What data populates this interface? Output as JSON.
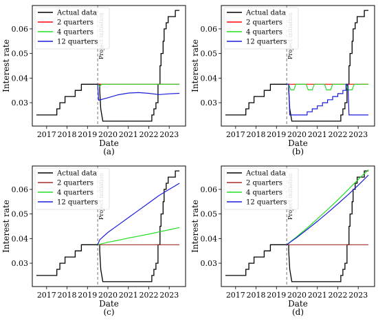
{
  "chart_data": [
    {
      "panel_label": "(a)",
      "type": "line",
      "xlabel": "Date",
      "ylabel": "Interest rate",
      "xlim": [
        2016.3,
        2023.8
      ],
      "ylim": [
        0.0205,
        0.0695
      ],
      "x_ticks": [
        "2017",
        "2018",
        "2019",
        "2020",
        "2021",
        "2022",
        "2023"
      ],
      "y_ticks": [
        "0.03",
        "0.04",
        "0.05",
        "0.06"
      ],
      "annotation": "Project initiation",
      "vline_x": 2019.5,
      "legend": {
        "position": "top-left"
      },
      "series": [
        {
          "name": "Actual data",
          "color": "#000000",
          "kind": "actual"
        },
        {
          "name": "2 quarters",
          "color": "#ff0000",
          "points": [
            [
              2019.5,
              0.0375
            ],
            [
              2023.5,
              0.0375
            ]
          ]
        },
        {
          "name": "4 quarters",
          "color": "#22dd22",
          "points": [
            [
              2019.5,
              0.0375
            ],
            [
              2019.6,
              0.0367
            ],
            [
              2019.7,
              0.0375
            ],
            [
              2023.5,
              0.0375
            ]
          ]
        },
        {
          "name": "12 quarters",
          "color": "#1a1adc",
          "points": [
            [
              2019.5,
              0.0375
            ],
            [
              2019.55,
              0.031
            ],
            [
              2020.0,
              0.032
            ],
            [
              2020.5,
              0.0332
            ],
            [
              2021.0,
              0.0339
            ],
            [
              2021.5,
              0.0341
            ],
            [
              2022.0,
              0.0338
            ],
            [
              2022.5,
              0.0333
            ],
            [
              2023.0,
              0.0336
            ],
            [
              2023.5,
              0.0338
            ]
          ]
        }
      ]
    },
    {
      "panel_label": "(b)",
      "type": "line",
      "xlabel": "Date",
      "ylabel": "Interest rate",
      "xlim": [
        2016.3,
        2023.8
      ],
      "ylim": [
        0.0205,
        0.0695
      ],
      "x_ticks": [
        "2017",
        "2018",
        "2019",
        "2020",
        "2021",
        "2022",
        "2023"
      ],
      "y_ticks": [
        "0.03",
        "0.04",
        "0.05",
        "0.06"
      ],
      "annotation": "Project initiation",
      "vline_x": 2019.5,
      "legend": {
        "position": "top-left"
      },
      "series": [
        {
          "name": "Actual data",
          "color": "#000000",
          "kind": "actual"
        },
        {
          "name": "2 quarters",
          "color": "#ff0000",
          "points": [
            [
              2019.5,
              0.0375
            ],
            [
              2023.5,
              0.0375
            ]
          ]
        },
        {
          "name": "4 quarters",
          "color": "#22dd22",
          "points": [
            [
              2019.5,
              0.0375
            ],
            [
              2019.6,
              0.0375
            ],
            [
              2019.7,
              0.0352
            ],
            [
              2019.85,
              0.0352
            ],
            [
              2019.95,
              0.0375
            ],
            [
              2020.45,
              0.0375
            ],
            [
              2020.55,
              0.0352
            ],
            [
              2020.75,
              0.0352
            ],
            [
              2020.85,
              0.0375
            ],
            [
              2021.35,
              0.0375
            ],
            [
              2021.45,
              0.0352
            ],
            [
              2021.65,
              0.0352
            ],
            [
              2021.75,
              0.0375
            ],
            [
              2022.4,
              0.0375
            ],
            [
              2022.5,
              0.0352
            ],
            [
              2022.7,
              0.0352
            ],
            [
              2022.8,
              0.0375
            ],
            [
              2023.5,
              0.0375
            ]
          ]
        },
        {
          "name": "12 quarters",
          "color": "#1a1adc",
          "points": [
            [
              2019.5,
              0.0375
            ],
            [
              2019.6,
              0.0375
            ],
            [
              2019.65,
              0.025
            ],
            [
              2020.5,
              0.025
            ],
            [
              2020.5,
              0.0263
            ],
            [
              2020.75,
              0.0263
            ],
            [
              2020.75,
              0.0275
            ],
            [
              2021.0,
              0.0275
            ],
            [
              2021.0,
              0.0287
            ],
            [
              2021.25,
              0.0287
            ],
            [
              2021.25,
              0.03
            ],
            [
              2021.5,
              0.03
            ],
            [
              2021.5,
              0.0312
            ],
            [
              2021.75,
              0.0312
            ],
            [
              2021.75,
              0.0325
            ],
            [
              2022.0,
              0.0325
            ],
            [
              2022.0,
              0.0337
            ],
            [
              2022.25,
              0.0337
            ],
            [
              2022.25,
              0.035
            ],
            [
              2022.4,
              0.035
            ],
            [
              2022.4,
              0.0375
            ],
            [
              2022.5,
              0.0375
            ],
            [
              2022.55,
              0.025
            ],
            [
              2023.5,
              0.025
            ]
          ]
        }
      ]
    },
    {
      "panel_label": "(c)",
      "type": "line",
      "xlabel": "Date",
      "ylabel": "Interest rate",
      "xlim": [
        2016.3,
        2023.8
      ],
      "ylim": [
        0.0205,
        0.0695
      ],
      "x_ticks": [
        "2017",
        "2018",
        "2019",
        "2020",
        "2021",
        "2022",
        "2023"
      ],
      "y_ticks": [
        "0.03",
        "0.04",
        "0.05",
        "0.06"
      ],
      "annotation": "Project initiation",
      "vline_x": 2019.5,
      "legend": {
        "position": "top-left"
      },
      "series": [
        {
          "name": "Actual data",
          "color": "#000000",
          "kind": "actual"
        },
        {
          "name": "2 quarters",
          "color": "#a52a2a",
          "points": [
            [
              2019.5,
              0.0375
            ],
            [
              2023.5,
              0.0375
            ]
          ]
        },
        {
          "name": "4 quarters",
          "color": "#22dd22",
          "points": [
            [
              2019.5,
              0.0375
            ],
            [
              2020.0,
              0.0385
            ],
            [
              2020.5,
              0.0393
            ],
            [
              2021.0,
              0.0402
            ],
            [
              2021.5,
              0.041
            ],
            [
              2022.0,
              0.0418
            ],
            [
              2022.5,
              0.0427
            ],
            [
              2023.0,
              0.0436
            ],
            [
              2023.5,
              0.0445
            ]
          ]
        },
        {
          "name": "12 quarters",
          "color": "#1a1adc",
          "points": [
            [
              2019.5,
              0.0375
            ],
            [
              2019.6,
              0.0395
            ],
            [
              2020.0,
              0.0425
            ],
            [
              2020.5,
              0.0455
            ],
            [
              2021.0,
              0.0485
            ],
            [
              2021.5,
              0.0515
            ],
            [
              2022.0,
              0.0545
            ],
            [
              2022.5,
              0.0575
            ],
            [
              2023.0,
              0.06
            ],
            [
              2023.5,
              0.0625
            ]
          ]
        }
      ]
    },
    {
      "panel_label": "(d)",
      "type": "line",
      "xlabel": "Date",
      "ylabel": "Interest rate",
      "xlim": [
        2016.3,
        2023.8
      ],
      "ylim": [
        0.0205,
        0.0695
      ],
      "x_ticks": [
        "2017",
        "2018",
        "2019",
        "2020",
        "2021",
        "2022",
        "2023"
      ],
      "y_ticks": [
        "0.03",
        "0.04",
        "0.05",
        "0.06"
      ],
      "annotation": "Project initiation",
      "vline_x": 2019.5,
      "legend": {
        "position": "top-left"
      },
      "series": [
        {
          "name": "Actual data",
          "color": "#000000",
          "kind": "actual"
        },
        {
          "name": "2 quarters",
          "color": "#a52a2a",
          "points": [
            [
              2019.5,
              0.0375
            ],
            [
              2023.5,
              0.0375
            ]
          ]
        },
        {
          "name": "4 quarters",
          "color": "#22dd22",
          "points": [
            [
              2019.5,
              0.0375
            ],
            [
              2020.0,
              0.0408
            ],
            [
              2020.5,
              0.0443
            ],
            [
              2021.0,
              0.048
            ],
            [
              2021.5,
              0.0518
            ],
            [
              2022.0,
              0.0557
            ],
            [
              2022.5,
              0.0598
            ],
            [
              2023.0,
              0.064
            ],
            [
              2023.5,
              0.068
            ]
          ]
        },
        {
          "name": "12 quarters",
          "color": "#1a1adc",
          "points": [
            [
              2019.5,
              0.0375
            ],
            [
              2020.0,
              0.0405
            ],
            [
              2020.5,
              0.0437
            ],
            [
              2021.0,
              0.047
            ],
            [
              2021.5,
              0.0505
            ],
            [
              2022.0,
              0.0541
            ],
            [
              2022.5,
              0.0578
            ],
            [
              2023.0,
              0.0617
            ],
            [
              2023.5,
              0.0658
            ]
          ]
        }
      ]
    }
  ],
  "actual_data": [
    [
      2016.5,
      0.025
    ],
    [
      2017.5,
      0.025
    ],
    [
      2017.5,
      0.0275
    ],
    [
      2017.65,
      0.0275
    ],
    [
      2017.65,
      0.03
    ],
    [
      2017.9,
      0.03
    ],
    [
      2017.9,
      0.0325
    ],
    [
      2018.4,
      0.0325
    ],
    [
      2018.4,
      0.035
    ],
    [
      2018.7,
      0.035
    ],
    [
      2018.7,
      0.0375
    ],
    [
      2019.6,
      0.0375
    ],
    [
      2019.6,
      0.035
    ],
    [
      2019.65,
      0.0275
    ],
    [
      2019.75,
      0.0225
    ],
    [
      2022.0,
      0.0225
    ],
    [
      2022.15,
      0.0225
    ],
    [
      2022.15,
      0.025
    ],
    [
      2022.25,
      0.025
    ],
    [
      2022.25,
      0.0275
    ],
    [
      2022.35,
      0.0275
    ],
    [
      2022.35,
      0.03
    ],
    [
      2022.45,
      0.03
    ],
    [
      2022.45,
      0.0375
    ],
    [
      2022.55,
      0.0375
    ],
    [
      2022.55,
      0.045
    ],
    [
      2022.6,
      0.045
    ],
    [
      2022.6,
      0.05
    ],
    [
      2022.7,
      0.05
    ],
    [
      2022.7,
      0.055
    ],
    [
      2022.75,
      0.055
    ],
    [
      2022.75,
      0.06
    ],
    [
      2022.85,
      0.06
    ],
    [
      2022.85,
      0.0625
    ],
    [
      2022.95,
      0.0625
    ],
    [
      2022.95,
      0.065
    ],
    [
      2023.3,
      0.065
    ],
    [
      2023.3,
      0.0675
    ],
    [
      2023.5,
      0.0675
    ]
  ]
}
